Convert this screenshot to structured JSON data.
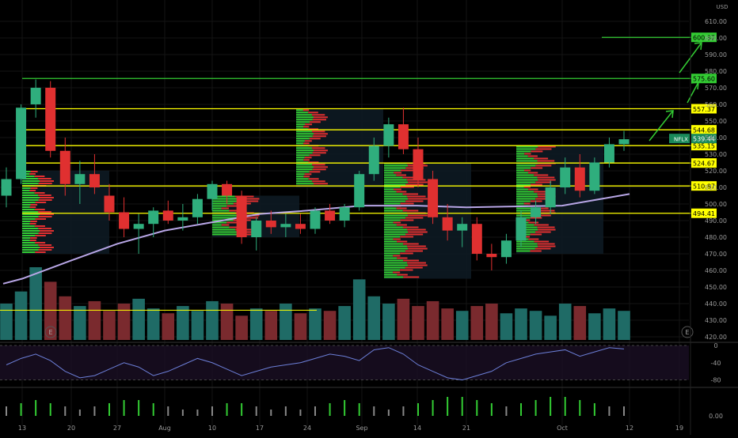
{
  "chart_data": {
    "type": "candlestick",
    "symbol": "NFLX",
    "currency": "USD",
    "last_price": "539.44",
    "y_ticks": [
      "610.00",
      "600.00",
      "590.00",
      "580.00",
      "570.00",
      "560.00",
      "550.00",
      "540.00",
      "530.00",
      "520.00",
      "510.00",
      "500.00",
      "490.00",
      "480.00",
      "470.00",
      "460.00",
      "450.00",
      "440.00",
      "430.00",
      "420.00"
    ],
    "x_ticks": [
      "13",
      "20",
      "27",
      "Aug",
      "10",
      "17",
      "24",
      "Sep",
      "14",
      "21",
      "Oct",
      "12",
      "19"
    ],
    "levels": [
      {
        "price": 600.37,
        "label": "600.37",
        "color": "#33cc33"
      },
      {
        "price": 575.6,
        "label": "575.60",
        "color": "#33cc33"
      },
      {
        "price": 557.37,
        "label": "557.37",
        "color": "#ffff00"
      },
      {
        "price": 544.68,
        "label": "544.68",
        "color": "#ffff00"
      },
      {
        "price": 535.15,
        "label": "535.15",
        "color": "#ffff00"
      },
      {
        "price": 524.67,
        "label": "524.67",
        "color": "#ffff00"
      },
      {
        "price": 510.87,
        "label": "510.87",
        "color": "#ffff00"
      },
      {
        "price": 494.41,
        "label": "494.41",
        "color": "#ffff00"
      }
    ],
    "candles": [
      {
        "x": "13",
        "o": 505,
        "h": 522,
        "l": 498,
        "c": 515
      },
      {
        "x": "",
        "o": 515,
        "h": 560,
        "l": 512,
        "c": 558
      },
      {
        "x": "",
        "o": 560,
        "h": 575,
        "l": 552,
        "c": 570
      },
      {
        "x": "",
        "o": 570,
        "h": 574,
        "l": 528,
        "c": 532
      },
      {
        "x": "",
        "o": 532,
        "h": 540,
        "l": 505,
        "c": 512
      },
      {
        "x": "20",
        "o": 512,
        "h": 526,
        "l": 500,
        "c": 518
      },
      {
        "x": "",
        "o": 518,
        "h": 530,
        "l": 506,
        "c": 510
      },
      {
        "x": "",
        "o": 505,
        "h": 512,
        "l": 490,
        "c": 495
      },
      {
        "x": "",
        "o": 495,
        "h": 504,
        "l": 480,
        "c": 485
      },
      {
        "x": "27",
        "o": 485,
        "h": 494,
        "l": 470,
        "c": 488
      },
      {
        "x": "",
        "o": 488,
        "h": 498,
        "l": 480,
        "c": 496
      },
      {
        "x": "",
        "o": 496,
        "h": 502,
        "l": 488,
        "c": 490
      },
      {
        "x": "",
        "o": 490,
        "h": 500,
        "l": 484,
        "c": 492
      },
      {
        "x": "Aug",
        "o": 492,
        "h": 506,
        "l": 488,
        "c": 503
      },
      {
        "x": "",
        "o": 503,
        "h": 514,
        "l": 496,
        "c": 512
      },
      {
        "x": "",
        "o": 512,
        "h": 514,
        "l": 500,
        "c": 505
      },
      {
        "x": "",
        "o": 505,
        "h": 508,
        "l": 476,
        "c": 480
      },
      {
        "x": "10",
        "o": 480,
        "h": 492,
        "l": 472,
        "c": 490
      },
      {
        "x": "",
        "o": 490,
        "h": 496,
        "l": 482,
        "c": 486
      },
      {
        "x": "",
        "o": 486,
        "h": 494,
        "l": 480,
        "c": 488
      },
      {
        "x": "17",
        "o": 488,
        "h": 494,
        "l": 482,
        "c": 485
      },
      {
        "x": "",
        "o": 485,
        "h": 498,
        "l": 482,
        "c": 496
      },
      {
        "x": "",
        "o": 496,
        "h": 500,
        "l": 488,
        "c": 490
      },
      {
        "x": "24",
        "o": 490,
        "h": 500,
        "l": 486,
        "c": 498
      },
      {
        "x": "",
        "o": 498,
        "h": 520,
        "l": 496,
        "c": 518
      },
      {
        "x": "",
        "o": 518,
        "h": 540,
        "l": 514,
        "c": 535
      },
      {
        "x": "",
        "o": 535,
        "h": 552,
        "l": 528,
        "c": 548
      },
      {
        "x": "Sep",
        "o": 548,
        "h": 558,
        "l": 530,
        "c": 533
      },
      {
        "x": "",
        "o": 533,
        "h": 540,
        "l": 510,
        "c": 515
      },
      {
        "x": "",
        "o": 515,
        "h": 520,
        "l": 488,
        "c": 492
      },
      {
        "x": "",
        "o": 492,
        "h": 500,
        "l": 478,
        "c": 484
      },
      {
        "x": "14",
        "o": 484,
        "h": 492,
        "l": 474,
        "c": 488
      },
      {
        "x": "",
        "o": 488,
        "h": 492,
        "l": 466,
        "c": 470
      },
      {
        "x": "",
        "o": 470,
        "h": 476,
        "l": 460,
        "c": 468
      },
      {
        "x": "21",
        "o": 468,
        "h": 482,
        "l": 464,
        "c": 478
      },
      {
        "x": "",
        "o": 478,
        "h": 496,
        "l": 474,
        "c": 492
      },
      {
        "x": "",
        "o": 492,
        "h": 502,
        "l": 488,
        "c": 498
      },
      {
        "x": "",
        "o": 498,
        "h": 514,
        "l": 494,
        "c": 510
      },
      {
        "x": "Oct",
        "o": 510,
        "h": 528,
        "l": 506,
        "c": 522
      },
      {
        "x": "",
        "o": 522,
        "h": 530,
        "l": 504,
        "c": 508
      },
      {
        "x": "",
        "o": 508,
        "h": 528,
        "l": 506,
        "c": 525
      },
      {
        "x": "",
        "o": 525,
        "h": 540,
        "l": 522,
        "c": 536
      },
      {
        "x": "",
        "o": 536,
        "h": 544,
        "l": 532,
        "c": 539
      }
    ],
    "moving_average": [
      {
        "x": "13",
        "y": 455
      },
      {
        "x": "20",
        "y": 466
      },
      {
        "x": "27",
        "y": 476
      },
      {
        "x": "Aug",
        "y": 484
      },
      {
        "x": "10",
        "y": 489
      },
      {
        "x": "17",
        "y": 494
      },
      {
        "x": "24",
        "y": 496
      },
      {
        "x": "Sep",
        "y": 499
      },
      {
        "x": "14",
        "y": 499
      },
      {
        "x": "21",
        "y": 498
      },
      {
        "x": "Oct",
        "y": 499
      },
      {
        "x": "12",
        "y": 506
      }
    ],
    "volume": [
      30,
      40,
      60,
      48,
      36,
      28,
      32,
      24,
      30,
      34,
      26,
      22,
      28,
      24,
      32,
      30,
      20,
      26,
      24,
      30,
      22,
      26,
      24,
      28,
      50,
      36,
      30,
      34,
      28,
      32,
      26,
      24,
      28,
      30,
      22,
      26,
      24,
      20,
      30,
      28,
      22,
      26,
      24
    ],
    "rsi_ticks": [
      "0",
      "-40",
      "-80"
    ],
    "rsi": [
      -45,
      -30,
      -20,
      -35,
      -60,
      -75,
      -70,
      -55,
      -40,
      -50,
      -70,
      -60,
      -45,
      -30,
      -40,
      -55,
      -70,
      -60,
      -50,
      -45,
      -40,
      -30,
      -20,
      -25,
      -35,
      -10,
      -5,
      -20,
      -45,
      -60,
      -75,
      -80,
      -70,
      -60,
      -40,
      -30,
      -20,
      -15,
      -10,
      -25,
      -15,
      -5,
      -8
    ],
    "momentum_ticks": [
      "0.00"
    ],
    "momentum": [
      3,
      4,
      5,
      4,
      3,
      2,
      3,
      4,
      5,
      5,
      4,
      3,
      2,
      2,
      3,
      4,
      4,
      3,
      2,
      3,
      2,
      3,
      4,
      5,
      4,
      3,
      2,
      3,
      4,
      5,
      6,
      6,
      5,
      4,
      3,
      4,
      5,
      6,
      6,
      5,
      4,
      3,
      3
    ]
  }
}
